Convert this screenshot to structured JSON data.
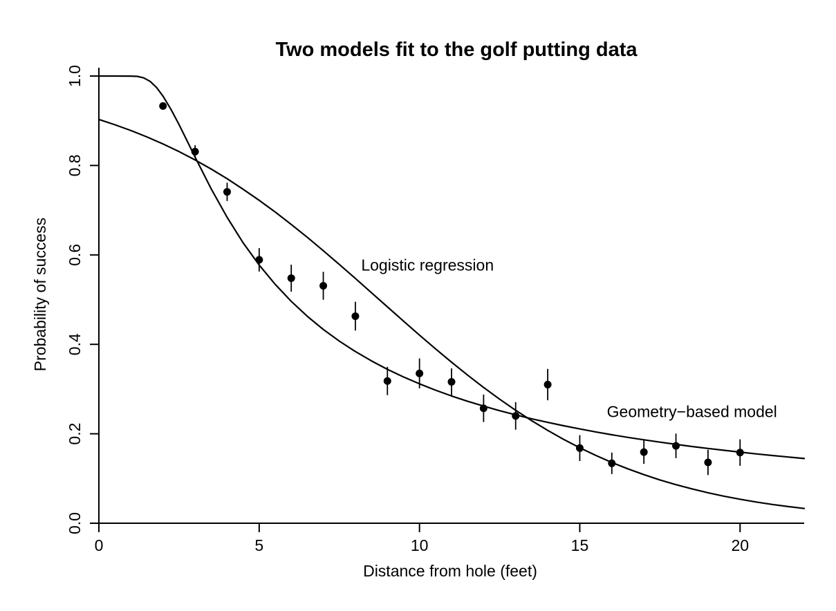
{
  "chart_data": {
    "type": "scatter",
    "title": "Two models fit to the golf putting data",
    "xlabel": "Distance from hole (feet)",
    "ylabel": "Probability of success",
    "xlim": [
      0,
      22
    ],
    "ylim": [
      0,
      1
    ],
    "x_ticks": [
      0,
      5,
      10,
      15,
      20
    ],
    "y_ticks": [
      "0.0",
      "0.2",
      "0.4",
      "0.6",
      "0.8",
      "1.0"
    ],
    "grid": false,
    "legend_position": "inline-annotations",
    "ink_color": "#000000",
    "background_color": "#ffffff",
    "points": {
      "distances": [
        2,
        3,
        4,
        5,
        6,
        7,
        8,
        9,
        10,
        11,
        12,
        13,
        14,
        15,
        16,
        17,
        18,
        19,
        20
      ],
      "probabilities": [
        0.933,
        0.831,
        0.741,
        0.589,
        0.548,
        0.531,
        0.463,
        0.318,
        0.335,
        0.316,
        0.257,
        0.24,
        0.31,
        0.168,
        0.134,
        0.159,
        0.173,
        0.136,
        0.158
      ],
      "std_errors": [
        0.0066,
        0.0142,
        0.0205,
        0.0262,
        0.0302,
        0.0312,
        0.0322,
        0.0316,
        0.0334,
        0.0302,
        0.0307,
        0.0308,
        0.0351,
        0.0289,
        0.024,
        0.0262,
        0.0274,
        0.0283,
        0.0296
      ]
    },
    "series": [
      {
        "name": "Logistic regression",
        "label": "Logistic regression",
        "label_pos": {
          "d": 10.25,
          "p": 0.565
        },
        "points": [
          [
            0,
            0.9029
          ],
          [
            0.5,
            0.8911
          ],
          [
            1,
            0.8781
          ],
          [
            1.5,
            0.8638
          ],
          [
            2,
            0.8481
          ],
          [
            2.5,
            0.831
          ],
          [
            3,
            0.8123
          ],
          [
            3.5,
            0.7921
          ],
          [
            4,
            0.7703
          ],
          [
            4.5,
            0.7469
          ],
          [
            5,
            0.7221
          ],
          [
            5.5,
            0.6958
          ],
          [
            6,
            0.6682
          ],
          [
            6.5,
            0.6394
          ],
          [
            7,
            0.6095
          ],
          [
            7.5,
            0.5787
          ],
          [
            8,
            0.5474
          ],
          [
            8.5,
            0.5156
          ],
          [
            9,
            0.4838
          ],
          [
            9.5,
            0.452
          ],
          [
            10,
            0.4207
          ],
          [
            10.5,
            0.39
          ],
          [
            11,
            0.3601
          ],
          [
            11.5,
            0.3312
          ],
          [
            12,
            0.3036
          ],
          [
            12.5,
            0.2774
          ],
          [
            13,
            0.2526
          ],
          [
            13.5,
            0.2292
          ],
          [
            14,
            0.2075
          ],
          [
            14.5,
            0.1873
          ],
          [
            15,
            0.1687
          ],
          [
            15.5,
            0.1516
          ],
          [
            16,
            0.1359
          ],
          [
            16.5,
            0.1216
          ],
          [
            17,
            0.1086
          ],
          [
            17.5,
            0.0968
          ],
          [
            18,
            0.0863
          ],
          [
            18.5,
            0.0768
          ],
          [
            19,
            0.0682
          ],
          [
            19.5,
            0.0605
          ],
          [
            20,
            0.0537
          ],
          [
            20.5,
            0.0475
          ],
          [
            21,
            0.0421
          ],
          [
            21.5,
            0.0373
          ],
          [
            22,
            0.0329
          ]
        ]
      },
      {
        "name": "Geometry-based model",
        "label": "Geometry−based model",
        "label_pos": {
          "d": 18.5,
          "p": 0.237
        },
        "points": [
          [
            0,
            1
          ],
          [
            0.5,
            1
          ],
          [
            1,
            0.9999
          ],
          [
            1.2,
            0.9992
          ],
          [
            1.4,
            0.9959
          ],
          [
            1.6,
            0.9879
          ],
          [
            1.8,
            0.9742
          ],
          [
            2,
            0.9551
          ],
          [
            2.25,
            0.9254
          ],
          [
            2.5,
            0.8915
          ],
          [
            2.75,
            0.8554
          ],
          [
            3,
            0.8188
          ],
          [
            3.5,
            0.7481
          ],
          [
            4,
            0.6839
          ],
          [
            4.5,
            0.6271
          ],
          [
            5,
            0.5775
          ],
          [
            5.5,
            0.5342
          ],
          [
            6,
            0.4962
          ],
          [
            6.5,
            0.4628
          ],
          [
            7,
            0.4334
          ],
          [
            7.5,
            0.4073
          ],
          [
            8,
            0.3839
          ],
          [
            8.5,
            0.363
          ],
          [
            9,
            0.3441
          ],
          [
            9.5,
            0.3271
          ],
          [
            10,
            0.3117
          ],
          [
            10.5,
            0.2975
          ],
          [
            11,
            0.2846
          ],
          [
            11.5,
            0.2727
          ],
          [
            12,
            0.2618
          ],
          [
            12.5,
            0.2517
          ],
          [
            13,
            0.2423
          ],
          [
            13.5,
            0.2336
          ],
          [
            14,
            0.2255
          ],
          [
            14.5,
            0.2179
          ],
          [
            15,
            0.2108
          ],
          [
            15.5,
            0.2041
          ],
          [
            16,
            0.1979
          ],
          [
            16.5,
            0.192
          ],
          [
            17,
            0.1865
          ],
          [
            17.5,
            0.1813
          ],
          [
            18,
            0.1763
          ],
          [
            18.5,
            0.1716
          ],
          [
            19,
            0.1672
          ],
          [
            19.5,
            0.163
          ],
          [
            20,
            0.159
          ],
          [
            20.5,
            0.1551
          ],
          [
            21,
            0.1515
          ],
          [
            21.5,
            0.148
          ],
          [
            22,
            0.1446
          ]
        ]
      }
    ]
  }
}
